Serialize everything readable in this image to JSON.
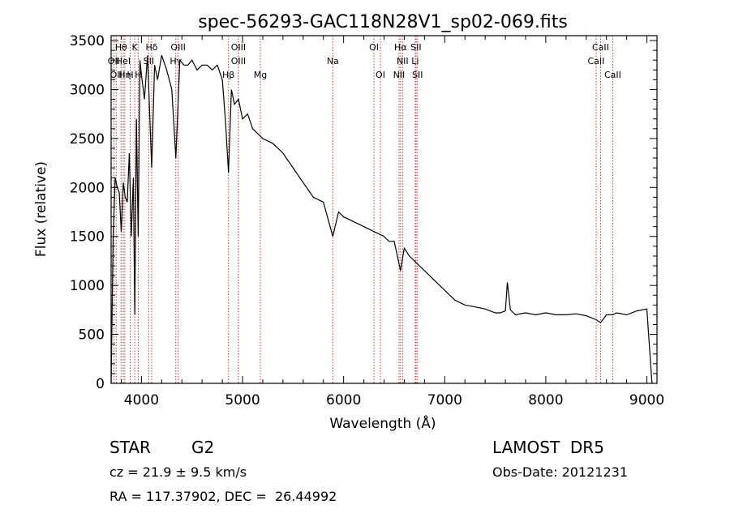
{
  "chart_data": {
    "type": "line",
    "title": "spec-56293-GAC118N28V1_sp02-069.fits",
    "xlabel": "Wavelength (Å)",
    "ylabel": "Flux (relative)",
    "xlim": [
      3700,
      9100
    ],
    "ylim": [
      0,
      3550
    ],
    "xticks": [
      "4000",
      "5000",
      "6000",
      "7000",
      "8000",
      "9000"
    ],
    "yticks": [
      "0",
      "500",
      "1000",
      "1500",
      "2000",
      "2500",
      "3000",
      "3500"
    ],
    "grid": false,
    "series": [
      {
        "x": [
          3700,
          3720,
          3740,
          3760,
          3780,
          3800,
          3820,
          3840,
          3860,
          3880,
          3900,
          3920,
          3934,
          3950,
          3968,
          3985,
          4000,
          4030,
          4060,
          4101,
          4130,
          4160,
          4200,
          4250,
          4300,
          4340,
          4380,
          4420,
          4460,
          4500,
          4550,
          4600,
          4650,
          4700,
          4750,
          4800,
          4830,
          4861,
          4890,
          4920,
          4960,
          5000,
          5050,
          5100,
          5150,
          5200,
          5300,
          5400,
          5500,
          5600,
          5700,
          5800,
          5893,
          5950,
          6000,
          6100,
          6200,
          6300,
          6400,
          6450,
          6500,
          6563,
          6600,
          6650,
          6700,
          6750,
          6800,
          6900,
          7000,
          7100,
          7200,
          7300,
          7400,
          7500,
          7550,
          7600,
          7620,
          7650,
          7700,
          7800,
          7900,
          8000,
          8100,
          8200,
          8300,
          8400,
          8498,
          8542,
          8600,
          8662,
          8700,
          8800,
          8900,
          9000,
          9050
        ],
        "y": [
          0,
          1500,
          2100,
          2000,
          1950,
          1550,
          2050,
          1900,
          1850,
          2350,
          1500,
          2100,
          700,
          2700,
          1500,
          3300,
          3150,
          2900,
          3350,
          2200,
          3250,
          3100,
          3350,
          3200,
          3000,
          2300,
          3300,
          3250,
          3250,
          3300,
          3200,
          3250,
          3250,
          3200,
          3250,
          3100,
          2700,
          2150,
          3000,
          2850,
          2900,
          2700,
          2750,
          2600,
          2550,
          2500,
          2450,
          2350,
          2200,
          2050,
          1900,
          1850,
          1500,
          1750,
          1700,
          1650,
          1600,
          1550,
          1500,
          1450,
          1450,
          1150,
          1380,
          1300,
          1250,
          1200,
          1150,
          1050,
          950,
          850,
          800,
          780,
          760,
          720,
          720,
          740,
          1030,
          750,
          700,
          720,
          700,
          720,
          700,
          700,
          710,
          690,
          650,
          620,
          700,
          700,
          720,
          700,
          740,
          760,
          0
        ]
      }
    ],
    "lines": [
      {
        "wl": 3727,
        "label": "OII",
        "row": 1
      },
      {
        "wl": 3750,
        "label": "OII",
        "row": 2
      },
      {
        "wl": 3798,
        "label": "Hθ",
        "row": 0
      },
      {
        "wl": 3820,
        "label": "HeI",
        "row": 1
      },
      {
        "wl": 3835,
        "label": "Hη",
        "row": 2
      },
      {
        "wl": 3889,
        "label": "H",
        "row": 2
      },
      {
        "wl": 3934,
        "label": "K",
        "row": 0
      },
      {
        "wl": 3968,
        "label": "H",
        "row": 2
      },
      {
        "wl": 4072,
        "label": "SII",
        "row": 1
      },
      {
        "wl": 4101,
        "label": "Hδ",
        "row": 0
      },
      {
        "wl": 4340,
        "label": "Hγ",
        "row": 1
      },
      {
        "wl": 4363,
        "label": "OIII",
        "row": 0
      },
      {
        "wl": 4861,
        "label": "Hβ",
        "row": 2
      },
      {
        "wl": 4959,
        "label": "OIII",
        "row": 0
      },
      {
        "wl": 4959,
        "label": "OIII",
        "row": 1
      },
      {
        "wl": 5176,
        "label": "Mg",
        "row": 2
      },
      {
        "wl": 5893,
        "label": "Na",
        "row": 1
      },
      {
        "wl": 6300,
        "label": "OI",
        "row": 0
      },
      {
        "wl": 6364,
        "label": "OI",
        "row": 2
      },
      {
        "wl": 6548,
        "label": "NII",
        "row": 2
      },
      {
        "wl": 6563,
        "label": "Hα",
        "row": 0
      },
      {
        "wl": 6583,
        "label": "NII",
        "row": 1
      },
      {
        "wl": 6708,
        "label": "Li",
        "row": 1
      },
      {
        "wl": 6716,
        "label": "SII",
        "row": 0
      },
      {
        "wl": 6731,
        "label": "SII",
        "row": 2
      },
      {
        "wl": 8498,
        "label": "CaII",
        "row": 1
      },
      {
        "wl": 8542,
        "label": "CaII",
        "row": 0
      },
      {
        "wl": 8662,
        "label": "CaII",
        "row": 2
      }
    ],
    "colors": {
      "line_marker": "#c23b3b",
      "spectrum": "#000000",
      "axes": "#000000"
    }
  },
  "footer": {
    "object_type": "STAR",
    "subclass": "G2",
    "survey": "LAMOST  DR5",
    "redshift": "cz = 21.9 ± 9.5 km/s",
    "obs_date": "Obs-Date: 20121231",
    "coords": "RA = 117.37902, DEC =  26.44992"
  }
}
